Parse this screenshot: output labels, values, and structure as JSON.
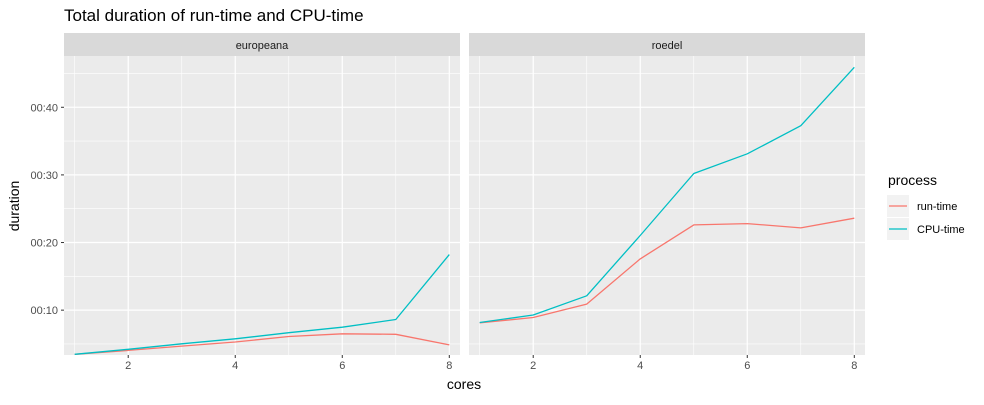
{
  "chart_data": {
    "type": "line",
    "title": "Total duration of run-time and CPU-time",
    "xlabel": "cores",
    "ylabel": "duration",
    "legend": {
      "title": "process",
      "placement": "right",
      "entries": [
        "run-time",
        "CPU-time"
      ]
    },
    "grid": true,
    "xlim": [
      0.8,
      8.2
    ],
    "ylim": [
      202,
      2855
    ],
    "x_ticks": [
      2,
      4,
      6,
      8
    ],
    "y_ticks": [
      {
        "value": 600,
        "label": "00:10"
      },
      {
        "value": 1200,
        "label": "00:20"
      },
      {
        "value": 1800,
        "label": "00:30"
      },
      {
        "value": 2400,
        "label": "00:40"
      }
    ],
    "colors": {
      "run-time": "#F8766D",
      "CPU-time": "#00BFC4"
    },
    "panels": [
      {
        "name": "europeana",
        "x": [
          1,
          2,
          3,
          4,
          5,
          6,
          7,
          8
        ],
        "series": [
          {
            "name": "run-time",
            "values": [
              208,
              243,
              281,
              317,
              366,
              390,
              386,
              292
            ]
          },
          {
            "name": "CPU-time",
            "values": [
              208,
              253,
              301,
              346,
              400,
              449,
              517,
              1093
            ]
          }
        ]
      },
      {
        "name": "roedel",
        "x": [
          1,
          2,
          3,
          4,
          5,
          6,
          7,
          8
        ],
        "series": [
          {
            "name": "run-time",
            "values": [
              487,
              535,
              654,
              1055,
              1356,
              1368,
              1330,
              1416
            ]
          },
          {
            "name": "CPU-time",
            "values": [
              490,
              557,
              727,
              1262,
              1812,
              1987,
              2237,
              2755
            ]
          }
        ]
      }
    ]
  }
}
